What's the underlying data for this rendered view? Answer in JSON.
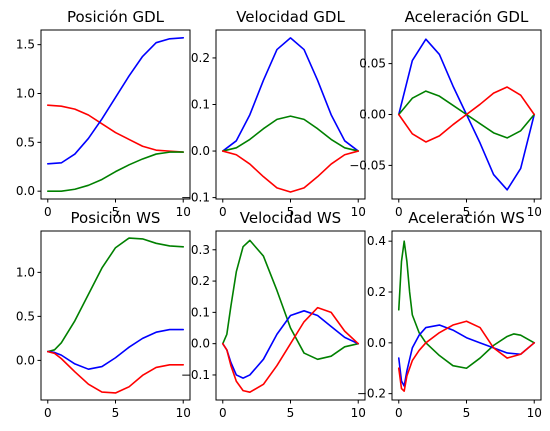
{
  "chart_data": [
    {
      "type": "line",
      "title": "Posición GDL",
      "xlim": [
        -0.5,
        10.5
      ],
      "ylim": [
        -0.08,
        1.65
      ],
      "xticks": [
        0,
        5,
        10
      ],
      "yticks": [
        0.0,
        0.5,
        1.0,
        1.5
      ],
      "ytick_labels": [
        "0.0",
        "0.5",
        "1.0",
        "1.5"
      ],
      "series": [
        {
          "color": "#ff0000",
          "x": [
            0,
            1,
            2,
            3,
            4,
            5,
            6,
            7,
            8,
            9,
            10
          ],
          "y": [
            0.88,
            0.87,
            0.84,
            0.78,
            0.69,
            0.6,
            0.53,
            0.46,
            0.42,
            0.41,
            0.4
          ]
        },
        {
          "color": "#0000ff",
          "x": [
            0,
            1,
            2,
            3,
            4,
            5,
            6,
            7,
            8,
            9,
            10
          ],
          "y": [
            0.28,
            0.29,
            0.38,
            0.54,
            0.74,
            0.96,
            1.18,
            1.38,
            1.52,
            1.56,
            1.57
          ]
        },
        {
          "color": "#008000",
          "x": [
            0,
            1,
            2,
            3,
            4,
            5,
            6,
            7,
            8,
            9,
            10
          ],
          "y": [
            0.0,
            0.0,
            0.02,
            0.06,
            0.12,
            0.2,
            0.27,
            0.33,
            0.38,
            0.4,
            0.4
          ]
        }
      ]
    },
    {
      "type": "line",
      "title": "Velocidad GDL",
      "xlim": [
        -0.5,
        10.5
      ],
      "ylim": [
        -0.103,
        0.26
      ],
      "xticks": [
        0,
        5,
        10
      ],
      "yticks": [
        -0.1,
        0.0,
        0.1,
        0.2
      ],
      "ytick_labels": [
        "−0.1",
        "0.0",
        "0.1",
        "0.2"
      ],
      "series": [
        {
          "color": "#0000ff",
          "x": [
            0,
            1,
            2,
            3,
            4,
            5,
            6,
            7,
            8,
            9,
            10
          ],
          "y": [
            0.0,
            0.022,
            0.078,
            0.152,
            0.218,
            0.243,
            0.218,
            0.152,
            0.078,
            0.022,
            0.0
          ]
        },
        {
          "color": "#008000",
          "x": [
            0,
            1,
            2,
            3,
            4,
            5,
            6,
            7,
            8,
            9,
            10
          ],
          "y": [
            0.0,
            0.007,
            0.025,
            0.048,
            0.068,
            0.075,
            0.068,
            0.048,
            0.025,
            0.007,
            0.0
          ]
        },
        {
          "color": "#ff0000",
          "x": [
            0,
            1,
            2,
            3,
            4,
            5,
            6,
            7,
            8,
            9,
            10
          ],
          "y": [
            0.0,
            -0.008,
            -0.028,
            -0.055,
            -0.079,
            -0.088,
            -0.079,
            -0.055,
            -0.028,
            -0.008,
            0.0
          ]
        }
      ]
    },
    {
      "type": "line",
      "title": "Aceleración GDL",
      "xlim": [
        -0.5,
        10.5
      ],
      "ylim": [
        -0.083,
        0.083
      ],
      "xticks": [
        0,
        5,
        10
      ],
      "yticks": [
        -0.05,
        0.0,
        0.05
      ],
      "ytick_labels": [
        "−0.05",
        "0.00",
        "0.05"
      ],
      "series": [
        {
          "color": "#0000ff",
          "x": [
            0,
            1,
            2,
            3,
            4,
            5,
            6,
            7,
            8,
            9,
            10
          ],
          "y": [
            0.0,
            0.053,
            0.074,
            0.059,
            0.028,
            0.0,
            -0.028,
            -0.059,
            -0.074,
            -0.053,
            0.0
          ]
        },
        {
          "color": "#008000",
          "x": [
            0,
            1,
            2,
            3,
            4,
            5,
            6,
            7,
            8,
            9,
            10
          ],
          "y": [
            0.0,
            0.016,
            0.023,
            0.018,
            0.009,
            0.0,
            -0.009,
            -0.018,
            -0.023,
            -0.016,
            0.0
          ]
        },
        {
          "color": "#ff0000",
          "x": [
            0,
            1,
            2,
            3,
            4,
            5,
            6,
            7,
            8,
            9,
            10
          ],
          "y": [
            0.0,
            -0.019,
            -0.027,
            -0.021,
            -0.01,
            0.0,
            0.01,
            0.021,
            0.027,
            0.019,
            0.0
          ]
        }
      ]
    },
    {
      "type": "line",
      "title": "Posición WS",
      "xlim": [
        -0.5,
        10.5
      ],
      "ylim": [
        -0.45,
        1.47
      ],
      "xticks": [
        0,
        5,
        10
      ],
      "yticks": [
        0.0,
        0.5,
        1.0
      ],
      "ytick_labels": [
        "0.0",
        "0.5",
        "1.0"
      ],
      "series": [
        {
          "color": "#008000",
          "x": [
            0,
            0.5,
            1,
            2,
            3,
            4,
            5,
            6,
            7,
            8,
            9,
            10
          ],
          "y": [
            0.1,
            0.12,
            0.2,
            0.45,
            0.75,
            1.05,
            1.28,
            1.39,
            1.38,
            1.33,
            1.3,
            1.29
          ]
        },
        {
          "color": "#0000ff",
          "x": [
            0,
            0.5,
            1,
            2,
            3,
            4,
            5,
            6,
            7,
            8,
            9,
            10
          ],
          "y": [
            0.1,
            0.09,
            0.06,
            -0.04,
            -0.1,
            -0.07,
            0.03,
            0.15,
            0.25,
            0.32,
            0.35,
            0.35
          ]
        },
        {
          "color": "#ff0000",
          "x": [
            0,
            0.5,
            1,
            2,
            3,
            4,
            5,
            6,
            7,
            8,
            9,
            10
          ],
          "y": [
            0.1,
            0.08,
            0.02,
            -0.13,
            -0.27,
            -0.36,
            -0.37,
            -0.3,
            -0.17,
            -0.08,
            -0.05,
            -0.05
          ]
        }
      ]
    },
    {
      "type": "line",
      "title": "Velocidad WS",
      "xlim": [
        -0.5,
        10.5
      ],
      "ylim": [
        -0.18,
        0.36
      ],
      "xticks": [
        0,
        5,
        10
      ],
      "yticks": [
        -0.1,
        0.0,
        0.1,
        0.2,
        0.3
      ],
      "ytick_labels": [
        "−0.1",
        "0.0",
        "0.1",
        "0.2",
        "0.3"
      ],
      "series": [
        {
          "color": "#008000",
          "x": [
            0,
            0.3,
            0.6,
            1,
            1.5,
            2,
            3,
            4,
            5,
            6,
            7,
            8,
            9,
            10
          ],
          "y": [
            0.0,
            0.03,
            0.12,
            0.23,
            0.31,
            0.33,
            0.28,
            0.17,
            0.05,
            -0.03,
            -0.05,
            -0.04,
            -0.01,
            0.0
          ]
        },
        {
          "color": "#0000ff",
          "x": [
            0,
            0.3,
            0.6,
            1,
            1.5,
            2,
            3,
            4,
            5,
            6,
            7,
            8,
            9,
            10
          ],
          "y": [
            0.0,
            -0.02,
            -0.06,
            -0.1,
            -0.11,
            -0.1,
            -0.05,
            0.03,
            0.09,
            0.105,
            0.09,
            0.055,
            0.02,
            0.0
          ]
        },
        {
          "color": "#ff0000",
          "x": [
            0,
            0.3,
            0.6,
            1,
            1.5,
            2,
            3,
            4,
            5,
            6,
            7,
            8,
            9,
            10
          ],
          "y": [
            0.0,
            -0.02,
            -0.07,
            -0.12,
            -0.15,
            -0.155,
            -0.13,
            -0.07,
            0.0,
            0.07,
            0.115,
            0.1,
            0.04,
            0.0
          ]
        }
      ]
    },
    {
      "type": "line",
      "title": "Aceleración WS",
      "xlim": [
        -0.5,
        10.5
      ],
      "ylim": [
        -0.225,
        0.44
      ],
      "xticks": [
        0,
        5,
        10
      ],
      "yticks": [
        -0.2,
        0.0,
        0.2,
        0.4
      ],
      "ytick_labels": [
        "−0.2",
        "0.0",
        "0.2",
        "0.4"
      ],
      "series": [
        {
          "color": "#008000",
          "x": [
            0,
            0.2,
            0.4,
            0.6,
            0.8,
            1,
            1.5,
            2,
            3,
            4,
            5,
            6,
            7,
            8,
            8.5,
            9,
            10
          ],
          "y": [
            0.13,
            0.32,
            0.4,
            0.32,
            0.2,
            0.11,
            0.04,
            0.0,
            -0.05,
            -0.09,
            -0.1,
            -0.06,
            -0.01,
            0.025,
            0.035,
            0.03,
            0.0
          ]
        },
        {
          "color": "#0000ff",
          "x": [
            0,
            0.2,
            0.4,
            0.6,
            1,
            1.5,
            2,
            3,
            4,
            5,
            6,
            7,
            8,
            9,
            10
          ],
          "y": [
            -0.06,
            -0.15,
            -0.17,
            -0.11,
            -0.02,
            0.03,
            0.06,
            0.07,
            0.05,
            0.02,
            0.0,
            -0.02,
            -0.04,
            -0.045,
            0.0
          ]
        },
        {
          "color": "#ff0000",
          "x": [
            0,
            0.2,
            0.4,
            0.6,
            1,
            1.5,
            2,
            3,
            4,
            5,
            6,
            7,
            8,
            9,
            10
          ],
          "y": [
            -0.1,
            -0.18,
            -0.19,
            -0.13,
            -0.07,
            -0.03,
            0.0,
            0.04,
            0.07,
            0.085,
            0.06,
            -0.02,
            -0.06,
            -0.045,
            0.0
          ]
        }
      ]
    }
  ]
}
